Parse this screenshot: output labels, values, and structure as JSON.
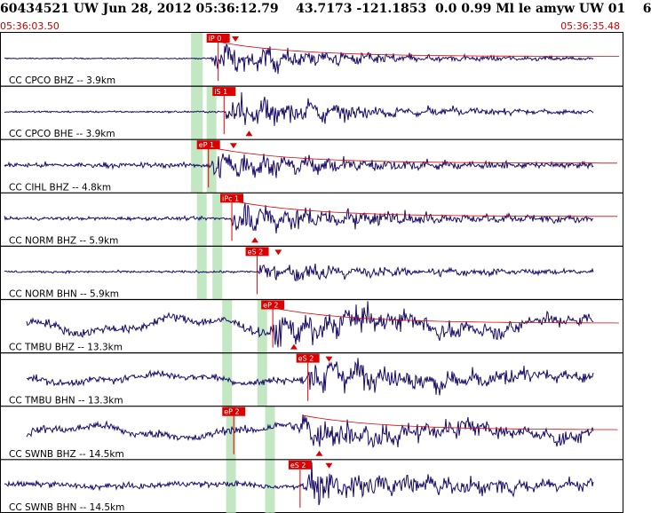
{
  "header": {
    "title": "60434521 UW Jun 28, 2012 05:36:12.79    43.7173 -121.1853  0.0 0.99 Ml le amyw UW 01    6",
    "start_time": "05:36:03.50",
    "end_time": "05:36:35.48"
  },
  "colors": {
    "waveform": "#1a0a6a",
    "pick": "#dd0000",
    "window": "#b7e3b7",
    "grid": "#000000"
  },
  "chart_data": {
    "type": "line",
    "xlabel": "",
    "ylabel": "",
    "x_range_seconds": [
      0,
      31.98
    ],
    "traces": [
      {
        "label": "CC CPCO BHZ -- 3.9km",
        "channel": "BHZ",
        "phase": "P",
        "pick_label": "iP 0",
        "pick_time": 10.6,
        "onset": 10.8,
        "noise": 0.04,
        "amp": 0.85,
        "period": 0.12,
        "low_freq": 0.0,
        "decay": 9.0,
        "windows": [
          [
            9.8,
            10.4
          ]
        ]
      },
      {
        "label": "CC CPCO BHE -- 3.9km",
        "channel": "BHE",
        "phase": "S",
        "pick_label": "iS 1",
        "pick_time": 10.9,
        "onset": 11.5,
        "noise": 0.06,
        "amp": 0.85,
        "period": 0.14,
        "low_freq": 0.0,
        "decay": 10.0,
        "windows": [
          [
            9.8,
            10.4
          ],
          [
            10.6,
            11.1
          ]
        ]
      },
      {
        "label": "CC CIHL BHZ -- 4.8km",
        "channel": "BHZ",
        "phase": "P",
        "pick_label": "eP 1",
        "pick_time": 10.1,
        "onset": 10.7,
        "noise": 0.18,
        "amp": 0.7,
        "period": 0.12,
        "low_freq": 0.0,
        "decay": 10.0,
        "windows": [
          [
            9.8,
            10.4
          ],
          [
            10.6,
            11.1
          ]
        ]
      },
      {
        "label": "CC NORM BHZ -- 5.9km",
        "channel": "BHZ",
        "phase": "P",
        "pick_label": "iPc 1",
        "pick_time": 11.3,
        "onset": 11.8,
        "noise": 0.12,
        "amp": 0.8,
        "period": 0.12,
        "low_freq": 0.0,
        "decay": 12.0,
        "windows": [
          [
            10.1,
            10.6
          ],
          [
            10.9,
            11.4
          ]
        ]
      },
      {
        "label": "CC NORM BHN -- 5.9km",
        "channel": "BHN",
        "phase": "S",
        "pick_label": "eS 2",
        "pick_time": 12.6,
        "onset": 13.0,
        "noise": 0.08,
        "amp": 0.5,
        "period": 0.14,
        "low_freq": 0.0,
        "decay": 12.0,
        "windows": [
          [
            10.1,
            10.6
          ],
          [
            10.9,
            11.4
          ]
        ]
      },
      {
        "label": "CC TMBU BHZ -- 13.3km",
        "channel": "BHZ",
        "phase": "P",
        "pick_label": "eP 2",
        "pick_time": 13.4,
        "onset": 13.8,
        "noise": 0.3,
        "amp": 0.75,
        "period": 0.12,
        "low_freq": 0.45,
        "decay": 15.0,
        "windows": [
          [
            11.4,
            11.9
          ],
          [
            13.2,
            13.7
          ]
        ]
      },
      {
        "label": "CC TMBU BHN -- 13.3km",
        "channel": "BHN",
        "phase": "S",
        "pick_label": "eS 2",
        "pick_time": 15.2,
        "onset": 15.6,
        "noise": 0.25,
        "amp": 0.8,
        "period": 0.14,
        "low_freq": 0.25,
        "decay": 15.0,
        "windows": [
          [
            11.4,
            11.9
          ],
          [
            13.2,
            13.7
          ]
        ]
      },
      {
        "label": "CC SWNB BHZ -- 14.5km",
        "channel": "BHZ",
        "phase": "P",
        "pick_label": "eP 2",
        "pick_time": 11.4,
        "onset": 15.1,
        "noise": 0.28,
        "amp": 0.75,
        "period": 0.12,
        "low_freq": 0.35,
        "decay": 15.0,
        "windows": [
          [
            11.6,
            12.1
          ],
          [
            13.6,
            14.1
          ]
        ]
      },
      {
        "label": "CC SWNB BHN -- 14.5km",
        "channel": "BHN",
        "phase": "S",
        "pick_label": "eS 2",
        "pick_time": 14.8,
        "onset": 15.6,
        "noise": 0.2,
        "amp": 0.85,
        "period": 0.14,
        "low_freq": 0.1,
        "decay": 14.0,
        "windows": [
          [
            11.6,
            12.1
          ],
          [
            13.6,
            14.1
          ]
        ]
      }
    ]
  }
}
